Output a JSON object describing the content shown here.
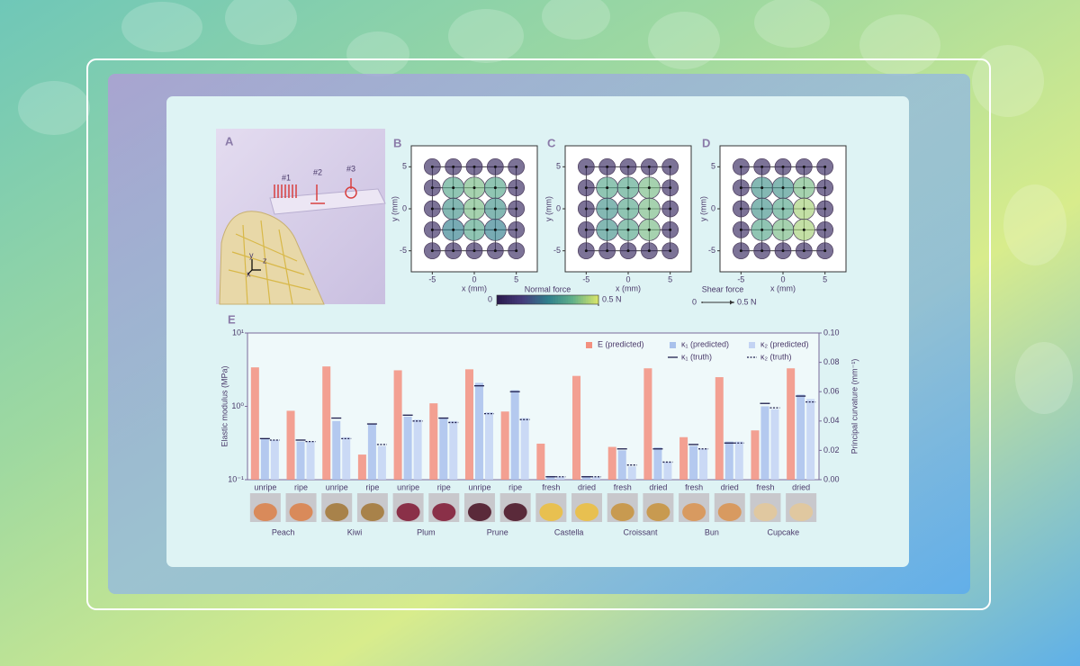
{
  "panel_a": {
    "panel_label": "A",
    "markers": [
      "#1",
      "#2",
      "#3"
    ],
    "axes": [
      "x",
      "y",
      "z"
    ]
  },
  "legends": {
    "normal_force": {
      "label": "Normal force",
      "ticks": [
        0,
        {
          "value": 0.5,
          "label": "0.5 N"
        }
      ],
      "colors": [
        "#2b1b4e",
        "#463c7c",
        "#2f7e8c",
        "#5fb08a",
        "#d4e46a"
      ]
    },
    "shear_force": {
      "label": "Shear force",
      "ticks": [
        0,
        {
          "value": 0.5,
          "label": "0.5 N"
        }
      ]
    }
  },
  "chart_data": [
    {
      "type": "heatmap",
      "panel_label": "B",
      "xlabel": "x (mm)",
      "ylabel": "y (mm)",
      "xlim": [
        -7.5,
        7.5
      ],
      "ylim": [
        -7.5,
        7.5
      ],
      "xticks": [
        -5,
        0,
        5
      ],
      "yticks": [
        -5,
        0,
        5
      ],
      "x": [
        -5,
        -2.5,
        0,
        2.5,
        5
      ],
      "y": [
        5,
        2.5,
        0,
        -2.5,
        -5
      ],
      "values": [
        [
          0.05,
          0.05,
          0.05,
          0.05,
          0.05
        ],
        [
          0.05,
          0.35,
          0.4,
          0.35,
          0.05
        ],
        [
          0.05,
          0.3,
          0.4,
          0.3,
          0.05
        ],
        [
          0.05,
          0.25,
          0.35,
          0.25,
          0.05
        ],
        [
          0.05,
          0.05,
          0.05,
          0.05,
          0.05
        ]
      ]
    },
    {
      "type": "heatmap",
      "panel_label": "C",
      "xlabel": "x (mm)",
      "ylabel": "y (mm)",
      "xlim": [
        -7.5,
        7.5
      ],
      "ylim": [
        -7.5,
        7.5
      ],
      "xticks": [
        -5,
        0,
        5
      ],
      "yticks": [
        -5,
        0,
        5
      ],
      "x": [
        -5,
        -2.5,
        0,
        2.5,
        5
      ],
      "y": [
        5,
        2.5,
        0,
        -2.5,
        -5
      ],
      "values": [
        [
          0.05,
          0.05,
          0.05,
          0.05,
          0.05
        ],
        [
          0.05,
          0.35,
          0.35,
          0.4,
          0.05
        ],
        [
          0.05,
          0.3,
          0.35,
          0.4,
          0.05
        ],
        [
          0.05,
          0.3,
          0.35,
          0.4,
          0.05
        ],
        [
          0.05,
          0.05,
          0.05,
          0.05,
          0.05
        ]
      ]
    },
    {
      "type": "heatmap",
      "panel_label": "D",
      "xlabel": "x (mm)",
      "ylabel": "y (mm)",
      "xlim": [
        -7.5,
        7.5
      ],
      "ylim": [
        -7.5,
        7.5
      ],
      "xticks": [
        -5,
        0,
        5
      ],
      "yticks": [
        -5,
        0,
        5
      ],
      "x": [
        -5,
        -2.5,
        0,
        2.5,
        5
      ],
      "y": [
        5,
        2.5,
        0,
        -2.5,
        -5
      ],
      "values": [
        [
          0.05,
          0.05,
          0.05,
          0.05,
          0.05
        ],
        [
          0.05,
          0.3,
          0.3,
          0.4,
          0.05
        ],
        [
          0.05,
          0.3,
          0.35,
          0.45,
          0.05
        ],
        [
          0.05,
          0.35,
          0.4,
          0.45,
          0.05
        ],
        [
          0.05,
          0.05,
          0.05,
          0.05,
          0.05
        ]
      ]
    },
    {
      "type": "bar",
      "panel_label": "E",
      "ylabel": "Elastic modulus (MPa)",
      "y2label": "Principal curvature (mm⁻¹)",
      "ylog": true,
      "ylim": [
        0.1,
        10
      ],
      "yticks": [
        {
          "value": 0.1,
          "label": "10⁻¹"
        },
        {
          "value": 1,
          "label": "10⁰"
        },
        {
          "value": 10,
          "label": "10¹"
        }
      ],
      "y2lim": [
        0,
        0.1
      ],
      "y2ticks": [
        {
          "value": 0,
          "label": "0.00"
        },
        {
          "value": 0.02,
          "label": "0.02"
        },
        {
          "value": 0.04,
          "label": "0.04"
        },
        {
          "value": 0.06,
          "label": "0.06"
        },
        {
          "value": 0.08,
          "label": "0.08"
        },
        {
          "value": 0.1,
          "label": "0.10"
        }
      ],
      "legend": "top-right",
      "categories": [
        "unripe",
        "ripe",
        "unripe",
        "ripe",
        "unripe",
        "ripe",
        "unripe",
        "ripe",
        "fresh",
        "dried",
        "fresh",
        "dried",
        "fresh",
        "dried",
        "fresh",
        "dried"
      ],
      "groups": [
        "Peach",
        "Kiwi",
        "Plum",
        "Prune",
        "Castella",
        "Croissant",
        "Bun",
        "Cupcake"
      ],
      "series": [
        {
          "name": "E (predicted)",
          "color": "#f3907f",
          "axis": "y",
          "style": "bar",
          "values": [
            3.4,
            0.87,
            3.5,
            0.22,
            3.1,
            1.1,
            3.2,
            0.85,
            0.31,
            2.6,
            0.28,
            3.3,
            0.38,
            2.5,
            0.47,
            3.3
          ]
        },
        {
          "name": "κ₁ (predicted)",
          "color": "#a9c1ec",
          "axis": "y2",
          "style": "bar",
          "values": [
            0.028,
            0.026,
            0.04,
            0.038,
            0.043,
            0.042,
            0.066,
            0.061,
            0.0025,
            0.0025,
            0.02,
            0.022,
            0.023,
            0.026,
            0.05,
            0.058
          ]
        },
        {
          "name": "κ₂ (predicted)",
          "color": "#c3d3f3",
          "axis": "y2",
          "style": "bar",
          "values": [
            0.027,
            0.026,
            0.029,
            0.023,
            0.041,
            0.04,
            0.046,
            0.042,
            0.002,
            0.002,
            0.009,
            0.012,
            0.021,
            0.026,
            0.048,
            0.055
          ]
        },
        {
          "name": "κ₁ (truth)",
          "color": "#1f1f4d",
          "axis": "y2",
          "style": "line",
          "values": [
            0.028,
            0.027,
            0.042,
            0.038,
            0.044,
            0.042,
            0.064,
            0.06,
            0.002,
            0.002,
            0.021,
            0.021,
            0.024,
            0.025,
            0.052,
            0.057
          ]
        },
        {
          "name": "κ₂ (truth)",
          "color": "#1f1f4d",
          "axis": "y2",
          "style": "dash",
          "values": [
            0.027,
            0.026,
            0.028,
            0.024,
            0.04,
            0.039,
            0.045,
            0.041,
            0.002,
            0.002,
            0.01,
            0.012,
            0.021,
            0.025,
            0.049,
            0.053
          ]
        }
      ]
    }
  ]
}
